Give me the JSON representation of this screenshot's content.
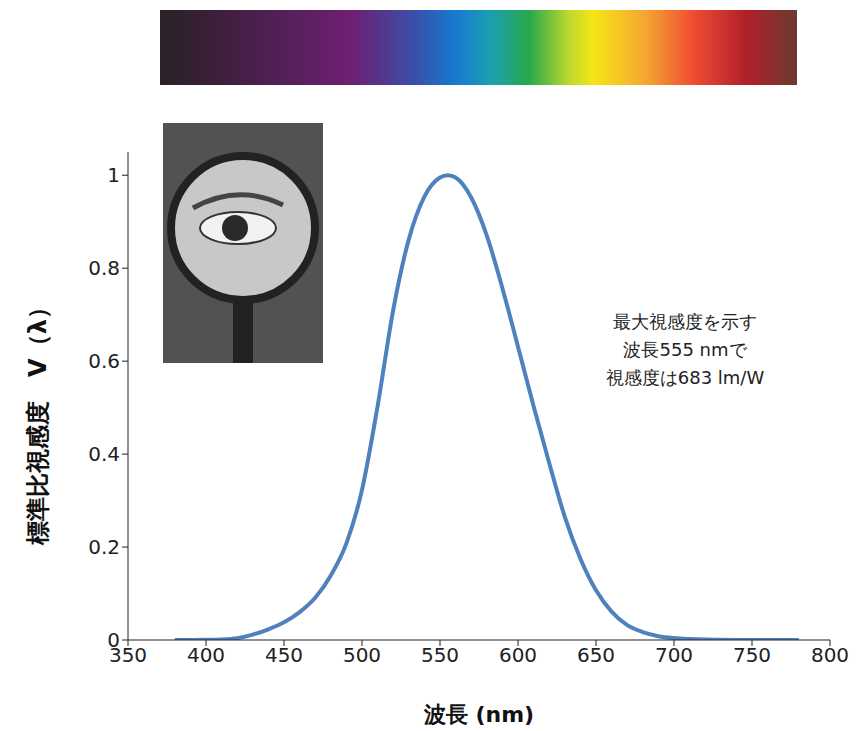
{
  "chart_data": {
    "type": "line",
    "x_label": "波長 (nm)",
    "y_label": "標準比視感度　V（λ）",
    "annotation": [
      "最大視感度を示す",
      "波長555 nmで",
      "視感度は683 lm/W"
    ],
    "x": [
      380,
      390,
      400,
      410,
      420,
      430,
      440,
      450,
      460,
      470,
      480,
      490,
      500,
      510,
      520,
      530,
      540,
      550,
      555,
      560,
      570,
      580,
      590,
      600,
      610,
      620,
      630,
      640,
      650,
      660,
      670,
      680,
      690,
      700,
      710,
      720,
      730,
      740,
      750,
      760,
      770,
      780
    ],
    "values": [
      0.0,
      0.0001,
      0.0004,
      0.0012,
      0.004,
      0.0116,
      0.023,
      0.038,
      0.06,
      0.091,
      0.139,
      0.208,
      0.323,
      0.503,
      0.71,
      0.862,
      0.954,
      0.995,
      1.0,
      0.995,
      0.952,
      0.87,
      0.757,
      0.631,
      0.503,
      0.381,
      0.265,
      0.175,
      0.107,
      0.061,
      0.032,
      0.017,
      0.0082,
      0.0041,
      0.0021,
      0.001,
      0.0005,
      0.0002,
      0.0001,
      0.0001,
      0.0,
      0.0
    ],
    "color": "#4f81bd",
    "xlim": [
      350,
      800
    ],
    "ylim": [
      0,
      1.05
    ],
    "xticks": [
      350,
      400,
      450,
      500,
      550,
      600,
      650,
      700,
      750,
      800
    ],
    "yticks": [
      0,
      0.2,
      0.4,
      0.6,
      0.8,
      1
    ],
    "grid": false
  }
}
